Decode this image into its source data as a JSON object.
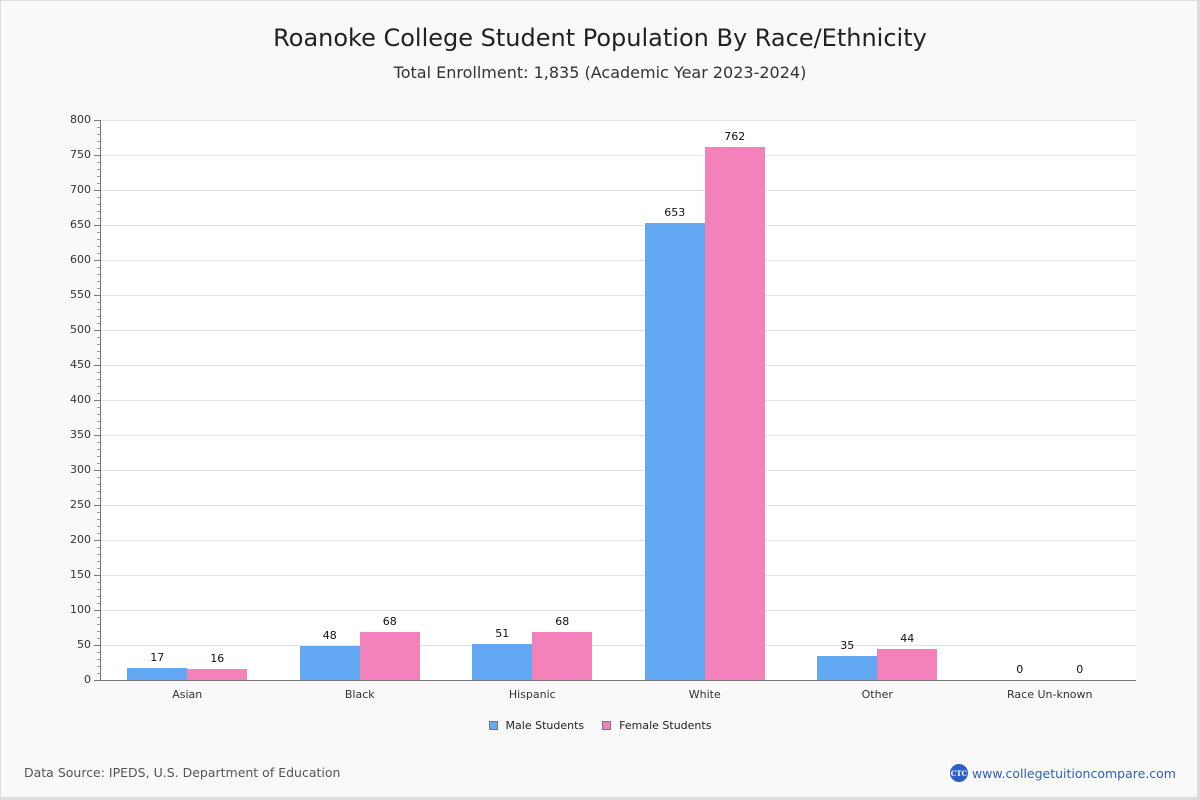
{
  "header": {
    "title": "Roanoke College Student Population By Race/Ethnicity",
    "subtitle": "Total Enrollment: 1,835 (Academic Year 2023-2024)"
  },
  "footer": {
    "source": "Data Source: IPEDS, U.S. Department of Education",
    "brand_logo": "CTC",
    "brand_url": "www.collegetuitioncompare.com"
  },
  "colors": {
    "male": "#62a8f2",
    "female": "#f282b9"
  },
  "chart_data": {
    "type": "bar",
    "title": "Roanoke College Student Population By Race/Ethnicity",
    "subtitle": "Total Enrollment: 1,835 (Academic Year 2023-2024)",
    "xlabel": "",
    "ylabel": "",
    "ylim": [
      0,
      800
    ],
    "yticks": [
      "0",
      "50",
      "100",
      "150",
      "200",
      "250",
      "300",
      "350",
      "400",
      "450",
      "500",
      "550",
      "600",
      "650",
      "700",
      "750",
      "800"
    ],
    "grid": true,
    "legend_position": "bottom",
    "categories": [
      "Asian",
      "Black",
      "Hispanic",
      "White",
      "Other",
      "Race Un-known"
    ],
    "series": [
      {
        "name": "Male Students",
        "color": "#62a8f2",
        "values": [
          17,
          48,
          51,
          653,
          35,
          0
        ]
      },
      {
        "name": "Female Students",
        "color": "#f282b9",
        "values": [
          16,
          68,
          68,
          762,
          44,
          0
        ]
      }
    ],
    "data_labels": {
      "male": [
        "17",
        "48",
        "51",
        "653",
        "35",
        "0"
      ],
      "female": [
        "16",
        "68",
        "68",
        "762",
        "44",
        "0"
      ]
    }
  }
}
